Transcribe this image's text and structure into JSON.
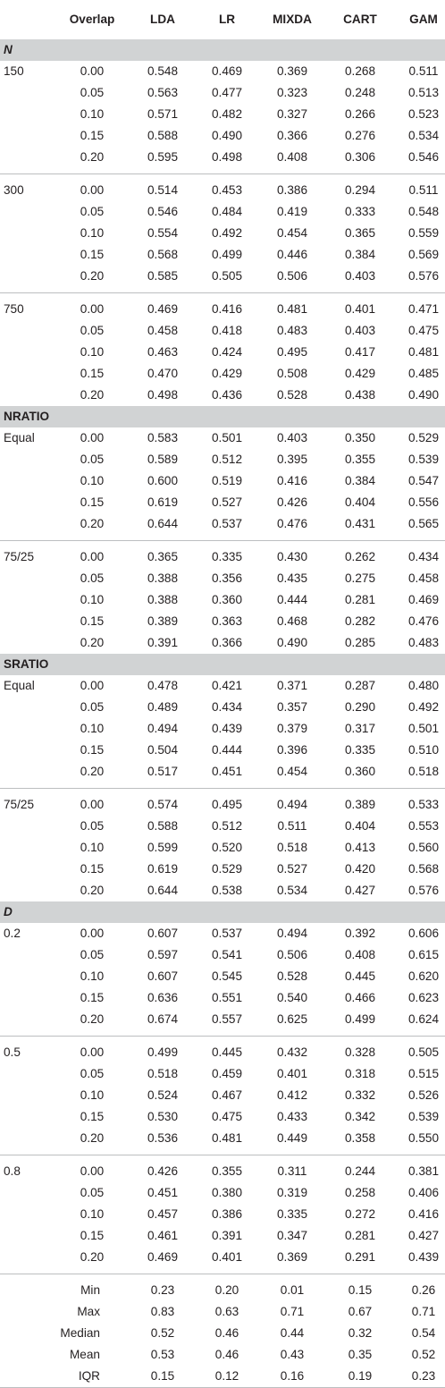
{
  "headers": [
    "",
    "Overlap",
    "LDA",
    "LR",
    "MIXDA",
    "CART",
    "GAM"
  ],
  "sections": [
    {
      "name": "N",
      "italic": true,
      "groups": [
        {
          "label": "150",
          "rows": [
            [
              "0.00",
              "0.548",
              "0.469",
              "0.369",
              "0.268",
              "0.511"
            ],
            [
              "0.05",
              "0.563",
              "0.477",
              "0.323",
              "0.248",
              "0.513"
            ],
            [
              "0.10",
              "0.571",
              "0.482",
              "0.327",
              "0.266",
              "0.523"
            ],
            [
              "0.15",
              "0.588",
              "0.490",
              "0.366",
              "0.276",
              "0.534"
            ],
            [
              "0.20",
              "0.595",
              "0.498",
              "0.408",
              "0.306",
              "0.546"
            ]
          ]
        },
        {
          "label": "300",
          "rows": [
            [
              "0.00",
              "0.514",
              "0.453",
              "0.386",
              "0.294",
              "0.511"
            ],
            [
              "0.05",
              "0.546",
              "0.484",
              "0.419",
              "0.333",
              "0.548"
            ],
            [
              "0.10",
              "0.554",
              "0.492",
              "0.454",
              "0.365",
              "0.559"
            ],
            [
              "0.15",
              "0.568",
              "0.499",
              "0.446",
              "0.384",
              "0.569"
            ],
            [
              "0.20",
              "0.585",
              "0.505",
              "0.506",
              "0.403",
              "0.576"
            ]
          ]
        },
        {
          "label": "750",
          "rows": [
            [
              "0.00",
              "0.469",
              "0.416",
              "0.481",
              "0.401",
              "0.471"
            ],
            [
              "0.05",
              "0.458",
              "0.418",
              "0.483",
              "0.403",
              "0.475"
            ],
            [
              "0.10",
              "0.463",
              "0.424",
              "0.495",
              "0.417",
              "0.481"
            ],
            [
              "0.15",
              "0.470",
              "0.429",
              "0.508",
              "0.429",
              "0.485"
            ],
            [
              "0.20",
              "0.498",
              "0.436",
              "0.528",
              "0.438",
              "0.490"
            ]
          ]
        }
      ]
    },
    {
      "name": "NRATIO",
      "italic": false,
      "groups": [
        {
          "label": "Equal",
          "rows": [
            [
              "0.00",
              "0.583",
              "0.501",
              "0.403",
              "0.350",
              "0.529"
            ],
            [
              "0.05",
              "0.589",
              "0.512",
              "0.395",
              "0.355",
              "0.539"
            ],
            [
              "0.10",
              "0.600",
              "0.519",
              "0.416",
              "0.384",
              "0.547"
            ],
            [
              "0.15",
              "0.619",
              "0.527",
              "0.426",
              "0.404",
              "0.556"
            ],
            [
              "0.20",
              "0.644",
              "0.537",
              "0.476",
              "0.431",
              "0.565"
            ]
          ]
        },
        {
          "label": "75/25",
          "rows": [
            [
              "0.00",
              "0.365",
              "0.335",
              "0.430",
              "0.262",
              "0.434"
            ],
            [
              "0.05",
              "0.388",
              "0.356",
              "0.435",
              "0.275",
              "0.458"
            ],
            [
              "0.10",
              "0.388",
              "0.360",
              "0.444",
              "0.281",
              "0.469"
            ],
            [
              "0.15",
              "0.389",
              "0.363",
              "0.468",
              "0.282",
              "0.476"
            ],
            [
              "0.20",
              "0.391",
              "0.366",
              "0.490",
              "0.285",
              "0.483"
            ]
          ]
        }
      ]
    },
    {
      "name": "SRATIO",
      "italic": false,
      "groups": [
        {
          "label": "Equal",
          "rows": [
            [
              "0.00",
              "0.478",
              "0.421",
              "0.371",
              "0.287",
              "0.480"
            ],
            [
              "0.05",
              "0.489",
              "0.434",
              "0.357",
              "0.290",
              "0.492"
            ],
            [
              "0.10",
              "0.494",
              "0.439",
              "0.379",
              "0.317",
              "0.501"
            ],
            [
              "0.15",
              "0.504",
              "0.444",
              "0.396",
              "0.335",
              "0.510"
            ],
            [
              "0.20",
              "0.517",
              "0.451",
              "0.454",
              "0.360",
              "0.518"
            ]
          ]
        },
        {
          "label": "75/25",
          "rows": [
            [
              "0.00",
              "0.574",
              "0.495",
              "0.494",
              "0.389",
              "0.533"
            ],
            [
              "0.05",
              "0.588",
              "0.512",
              "0.511",
              "0.404",
              "0.553"
            ],
            [
              "0.10",
              "0.599",
              "0.520",
              "0.518",
              "0.413",
              "0.560"
            ],
            [
              "0.15",
              "0.619",
              "0.529",
              "0.527",
              "0.420",
              "0.568"
            ],
            [
              "0.20",
              "0.644",
              "0.538",
              "0.534",
              "0.427",
              "0.576"
            ]
          ]
        }
      ]
    },
    {
      "name": "D",
      "italic": true,
      "groups": [
        {
          "label": "0.2",
          "rows": [
            [
              "0.00",
              "0.607",
              "0.537",
              "0.494",
              "0.392",
              "0.606"
            ],
            [
              "0.05",
              "0.597",
              "0.541",
              "0.506",
              "0.408",
              "0.615"
            ],
            [
              "0.10",
              "0.607",
              "0.545",
              "0.528",
              "0.445",
              "0.620"
            ],
            [
              "0.15",
              "0.636",
              "0.551",
              "0.540",
              "0.466",
              "0.623"
            ],
            [
              "0.20",
              "0.674",
              "0.557",
              "0.625",
              "0.499",
              "0.624"
            ]
          ]
        },
        {
          "label": "0.5",
          "rows": [
            [
              "0.00",
              "0.499",
              "0.445",
              "0.432",
              "0.328",
              "0.505"
            ],
            [
              "0.05",
              "0.518",
              "0.459",
              "0.401",
              "0.318",
              "0.515"
            ],
            [
              "0.10",
              "0.524",
              "0.467",
              "0.412",
              "0.332",
              "0.526"
            ],
            [
              "0.15",
              "0.530",
              "0.475",
              "0.433",
              "0.342",
              "0.539"
            ],
            [
              "0.20",
              "0.536",
              "0.481",
              "0.449",
              "0.358",
              "0.550"
            ]
          ]
        },
        {
          "label": "0.8",
          "rows": [
            [
              "0.00",
              "0.426",
              "0.355",
              "0.311",
              "0.244",
              "0.381"
            ],
            [
              "0.05",
              "0.451",
              "0.380",
              "0.319",
              "0.258",
              "0.406"
            ],
            [
              "0.10",
              "0.457",
              "0.386",
              "0.335",
              "0.272",
              "0.416"
            ],
            [
              "0.15",
              "0.461",
              "0.391",
              "0.347",
              "0.281",
              "0.427"
            ],
            [
              "0.20",
              "0.469",
              "0.401",
              "0.369",
              "0.291",
              "0.439"
            ]
          ]
        }
      ]
    }
  ],
  "summary": [
    [
      "Min",
      "0.23",
      "0.20",
      "0.01",
      "0.15",
      "0.26"
    ],
    [
      "Max",
      "0.83",
      "0.63",
      "0.71",
      "0.67",
      "0.71"
    ],
    [
      "Median",
      "0.52",
      "0.46",
      "0.44",
      "0.32",
      "0.54"
    ],
    [
      "Mean",
      "0.53",
      "0.46",
      "0.43",
      "0.35",
      "0.52"
    ],
    [
      "IQR",
      "0.15",
      "0.12",
      "0.16",
      "0.19",
      "0.23"
    ]
  ]
}
